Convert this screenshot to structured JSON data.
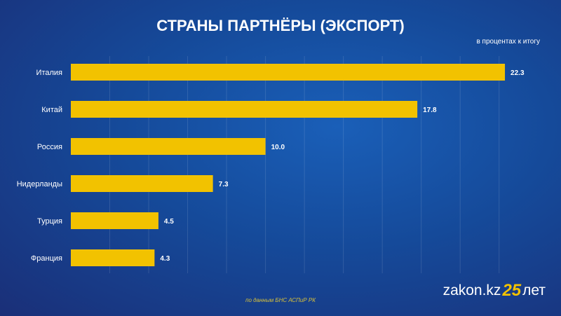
{
  "chart_data": {
    "type": "bar",
    "orientation": "horizontal",
    "title": "СТРАНЫ ПАРТНЁРЫ (ЭКСПОРТ)",
    "subtitle": "в процентах к итогу",
    "categories": [
      "Италия",
      "Китай",
      "Россия",
      "Нидерланды",
      "Турция",
      "Франция"
    ],
    "values": [
      22.3,
      17.8,
      10.0,
      7.3,
      4.5,
      4.3
    ],
    "labels": [
      "22.3",
      "17.8",
      "10.0",
      "7.3",
      "4.5",
      "4.3"
    ],
    "xlim": [
      0,
      24
    ],
    "grid": true,
    "bar_color": "#f2c200"
  },
  "source": "по данным БНС АСПиР РК",
  "logo": {
    "text": "zakon.kz",
    "number": "25",
    "suffix": "лет"
  }
}
